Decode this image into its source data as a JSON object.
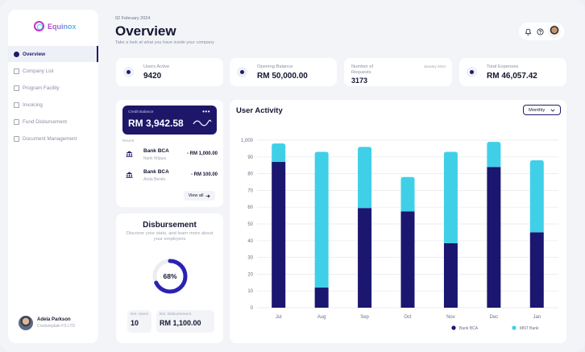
{
  "app": {
    "name": "Equinox"
  },
  "sidebar": {
    "items": [
      {
        "label": "Overview",
        "active": true
      },
      {
        "label": "Company List",
        "active": false
      },
      {
        "label": "Program Facility",
        "active": false
      },
      {
        "label": "Invoicing",
        "active": false
      },
      {
        "label": "Fund Disbursement",
        "active": false
      },
      {
        "label": "Document Management",
        "active": false
      }
    ],
    "user": {
      "name": "Adela Parkson",
      "role": "Credureplate FS LTD"
    }
  },
  "header": {
    "date": "02 February 2024",
    "title": "Overview",
    "subtitle": "Take a look at what you have inside your company"
  },
  "stats": [
    {
      "label": "Users Active",
      "value": "9420",
      "extra": ""
    },
    {
      "label": "Opening Balance",
      "value": "RM 50,000.00",
      "extra": ""
    },
    {
      "label": "Number of Requests",
      "value": "3173",
      "extra": "January 2024"
    },
    {
      "label": "Total Expenses",
      "value": "RM 46,057.42",
      "extra": ""
    }
  ],
  "credit": {
    "label": "Credit Balance",
    "amount": "RM 3,942.58",
    "more": "•••",
    "recent_label": "Recent",
    "transactions": [
      {
        "name": "Bank BCA",
        "person": "Nank Wijaya",
        "amount": "- RM 1,000.00"
      },
      {
        "name": "Bank BCA",
        "person": "Anda Benito",
        "amount": "- RM 100.00"
      }
    ],
    "view_all": "View all"
  },
  "disbursement": {
    "title": "Disbursement",
    "description": "Discover your stats, and learn more about your employers",
    "percent": 68,
    "percent_label": "68%",
    "stats": [
      {
        "label": "Est. Users",
        "value": "10"
      },
      {
        "label": "Est. Disbursement",
        "value": "RM 1,100.00"
      }
    ]
  },
  "chart": {
    "title": "User Activity",
    "period": "Monthly"
  },
  "chart_data": {
    "type": "bar",
    "stacked": true,
    "title": "User Activity",
    "categories": [
      "Jul",
      "Aug",
      "Sep",
      "Oct",
      "Nov",
      "Dec",
      "Jan"
    ],
    "series": [
      {
        "name": "Bank BCA",
        "color": "#1b1670",
        "values": [
          870,
          120,
          595,
          575,
          385,
          840,
          450
        ]
      },
      {
        "name": "MNT Bank",
        "color": "#3fd0e8",
        "values": [
          110,
          810,
          365,
          205,
          545,
          150,
          430
        ]
      }
    ],
    "y_ticks": [
      "0",
      "10",
      "20",
      "30",
      "40",
      "50",
      "60",
      "70",
      "80",
      "90",
      "1,000"
    ],
    "ylim": [
      0,
      1000
    ],
    "grid": true,
    "legend": "bottom-right"
  }
}
